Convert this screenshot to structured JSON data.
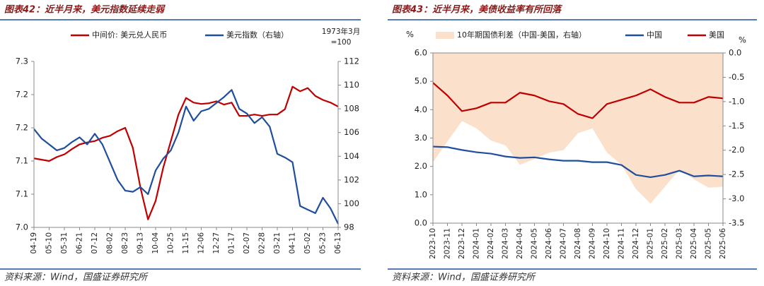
{
  "chart_data": [
    {
      "type": "line",
      "title": "图表42：近半月来，美元指数延续走弱",
      "source": "资料来源：Wind，国盛证券研究所",
      "annotation": [
        "1973年3月",
        "=100"
      ],
      "categories": [
        "04-19",
        null,
        "05-10",
        null,
        "05-31",
        null,
        "06-21",
        null,
        "07-12",
        null,
        "08-02",
        null,
        "08-23",
        null,
        "09-13",
        null,
        "10-04",
        null,
        "10-25",
        null,
        "11-15",
        null,
        "12-06",
        null,
        "12-27",
        null,
        "01-17",
        null,
        "02-07",
        null,
        "02-28",
        null,
        "03-21",
        null,
        "04-11",
        null,
        "05-02",
        null,
        "05-23",
        null,
        "06-13"
      ],
      "series": [
        {
          "name": "中间价: 美元兑人民币",
          "color": "#c00000",
          "values": [
            7.104,
            7.102,
            7.1,
            7.106,
            7.11,
            7.118,
            7.125,
            7.128,
            7.13,
            7.135,
            7.138,
            7.145,
            7.15,
            7.12,
            7.06,
            7.012,
            7.04,
            7.09,
            7.13,
            7.17,
            7.195,
            7.188,
            7.186,
            7.187,
            7.19,
            7.185,
            7.188,
            7.168,
            7.168,
            7.17,
            7.168,
            7.17,
            7.17,
            7.178,
            7.212,
            7.205,
            7.21,
            7.198,
            7.192,
            7.188,
            7.182
          ]
        },
        {
          "name": "美元指数（右轴）",
          "color": "#1f4e9c",
          "axis": "y2",
          "values": [
            106.3,
            105.5,
            105.0,
            104.5,
            104.7,
            105.2,
            105.6,
            105.0,
            105.9,
            105.0,
            103.5,
            102.0,
            101.1,
            101.0,
            101.4,
            100.8,
            102.8,
            103.8,
            104.5,
            106.0,
            108.2,
            107.0,
            107.8,
            108.0,
            108.5,
            109.0,
            109.6,
            108.0,
            107.6,
            106.8,
            107.3,
            106.5,
            104.2,
            103.9,
            103.5,
            99.8,
            99.5,
            99.2,
            100.5,
            99.6,
            98.3
          ]
        }
      ],
      "ylim": [
        7.0,
        7.25
      ],
      "yticks": [
        {
          "value": 7.0,
          "label": "7.0"
        },
        {
          "value": 7.05,
          "label": "7.1"
        },
        {
          "value": 7.1,
          "label": "7.1"
        },
        {
          "value": 7.15,
          "label": "7.2"
        },
        {
          "value": 7.2,
          "label": "7.2"
        },
        {
          "value": 7.25,
          "label": "7.3"
        }
      ],
      "y2lim": [
        98,
        112
      ],
      "y2ticks": [
        98,
        100,
        102,
        104,
        106,
        108,
        110,
        112
      ],
      "grid": false
    },
    {
      "type": "line",
      "title": "图表43：近半月来，美债收益率有所回落",
      "source": "资料来源：Wind，国盛证券研究所",
      "ylabel": "%",
      "y2label": "%",
      "categories": [
        "2023-10",
        "2023-11",
        "2023-12",
        "2024-01",
        "2024-02",
        "2024-03",
        "2024-04",
        "2024-05",
        "2024-06",
        "2024-07",
        "2024-08",
        "2024-09",
        "2024-10",
        "2024-11",
        "2024-12",
        "2025-01",
        "2025-02",
        "2025-03",
        "2025-04",
        "2025-05",
        "2025-06"
      ],
      "series": [
        {
          "name": "10年期国债利差（中国-美国，右轴）",
          "color": "#fbe0cc",
          "axis": "y2",
          "kind": "area",
          "values": [
            -2.25,
            -1.82,
            -1.4,
            -1.55,
            -1.8,
            -1.9,
            -2.3,
            -2.18,
            -2.05,
            -2.0,
            -1.65,
            -1.55,
            -2.05,
            -2.3,
            -2.8,
            -3.1,
            -2.75,
            -2.4,
            -2.6,
            -2.77,
            -2.75
          ]
        },
        {
          "name": "中国",
          "color": "#1f4e9c",
          "values": [
            2.7,
            2.68,
            2.58,
            2.5,
            2.45,
            2.35,
            2.3,
            2.32,
            2.25,
            2.2,
            2.2,
            2.15,
            2.15,
            2.05,
            1.7,
            1.62,
            1.7,
            1.85,
            1.65,
            1.68,
            1.65
          ]
        },
        {
          "name": "美国",
          "color": "#c00000",
          "values": [
            4.95,
            4.5,
            3.95,
            4.05,
            4.25,
            4.25,
            4.6,
            4.5,
            4.3,
            4.2,
            3.85,
            3.7,
            4.2,
            4.35,
            4.5,
            4.72,
            4.45,
            4.25,
            4.25,
            4.45,
            4.4
          ]
        }
      ],
      "ylim": [
        0,
        6
      ],
      "yticks": [
        {
          "value": 0,
          "label": "0.0"
        },
        {
          "value": 1,
          "label": "1.0"
        },
        {
          "value": 2,
          "label": "2.0"
        },
        {
          "value": 3,
          "label": "3.0"
        },
        {
          "value": 4,
          "label": "4.0"
        },
        {
          "value": 5,
          "label": "5.0"
        },
        {
          "value": 6,
          "label": "6.0"
        }
      ],
      "y2lim": [
        -3.5,
        0
      ],
      "y2ticks": [
        {
          "value": 0,
          "label": "0.0"
        },
        {
          "value": -0.5,
          "label": "-0.5"
        },
        {
          "value": -1,
          "label": "-1.0"
        },
        {
          "value": -1.5,
          "label": "-1.5"
        },
        {
          "value": -2,
          "label": "-2.0"
        },
        {
          "value": -2.5,
          "label": "-2.5"
        },
        {
          "value": -3,
          "label": "-3.0"
        },
        {
          "value": -3.5,
          "label": "-3.5"
        }
      ],
      "grid": false
    }
  ]
}
